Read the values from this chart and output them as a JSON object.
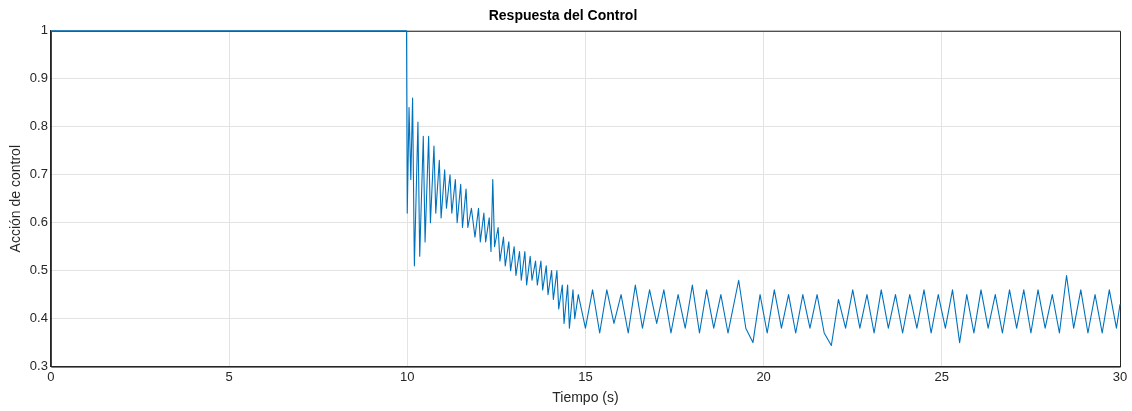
{
  "chart_data": {
    "type": "line",
    "title": "Respuesta del Control",
    "xlabel": "Tiempo (s)",
    "ylabel": "Acción de control",
    "xlim": [
      0,
      30
    ],
    "xticks": [
      0,
      5,
      10,
      15,
      20,
      25,
      30
    ],
    "ylim": [
      0.3,
      1
    ],
    "yticks": [
      0.3,
      0.4,
      0.5,
      0.6,
      0.7,
      0.8,
      0.9,
      1
    ],
    "grid": true,
    "legend": false,
    "marker": "none",
    "line_style": "solid",
    "series": [
      {
        "color": "#0072bd",
        "x": [
          0,
          9.98,
          10.0,
          10.05,
          10.1,
          10.15,
          10.2,
          10.3,
          10.35,
          10.45,
          10.5,
          10.6,
          10.65,
          10.75,
          10.8,
          10.9,
          10.95,
          11.05,
          11.1,
          11.2,
          11.25,
          11.35,
          11.4,
          11.5,
          11.55,
          11.65,
          11.7,
          11.8,
          11.9,
          12.0,
          12.05,
          12.15,
          12.2,
          12.3,
          12.35,
          12.4,
          12.45,
          12.55,
          12.6,
          12.7,
          12.75,
          12.85,
          12.9,
          13.0,
          13.05,
          13.15,
          13.2,
          13.3,
          13.35,
          13.45,
          13.5,
          13.6,
          13.65,
          13.75,
          13.8,
          13.9,
          13.95,
          14.05,
          14.1,
          14.2,
          14.25,
          14.35,
          14.4,
          14.5,
          14.55,
          14.65,
          14.7,
          14.8,
          15.0,
          15.2,
          15.4,
          15.6,
          15.8,
          16.0,
          16.2,
          16.4,
          16.6,
          16.8,
          17.0,
          17.2,
          17.4,
          17.6,
          17.8,
          18.0,
          18.2,
          18.4,
          18.6,
          18.8,
          19.0,
          19.3,
          19.5,
          19.7,
          19.9,
          20.1,
          20.3,
          20.5,
          20.7,
          20.9,
          21.1,
          21.3,
          21.5,
          21.7,
          21.9,
          22.1,
          22.3,
          22.5,
          22.7,
          22.9,
          23.1,
          23.3,
          23.5,
          23.7,
          23.9,
          24.1,
          24.3,
          24.5,
          24.7,
          24.9,
          25.1,
          25.3,
          25.5,
          25.7,
          25.9,
          26.1,
          26.3,
          26.5,
          26.7,
          26.9,
          27.1,
          27.3,
          27.5,
          27.7,
          27.9,
          28.1,
          28.3,
          28.5,
          28.7,
          28.9,
          29.1,
          29.3,
          29.5,
          29.7,
          29.9,
          30.0
        ],
        "values": [
          1,
          1,
          0.62,
          0.84,
          0.69,
          0.86,
          0.51,
          0.81,
          0.53,
          0.78,
          0.56,
          0.78,
          0.6,
          0.76,
          0.62,
          0.73,
          0.61,
          0.71,
          0.63,
          0.7,
          0.62,
          0.69,
          0.6,
          0.68,
          0.59,
          0.67,
          0.59,
          0.63,
          0.57,
          0.63,
          0.56,
          0.62,
          0.56,
          0.61,
          0.54,
          0.69,
          0.55,
          0.59,
          0.52,
          0.57,
          0.51,
          0.56,
          0.5,
          0.55,
          0.49,
          0.54,
          0.48,
          0.54,
          0.47,
          0.53,
          0.48,
          0.52,
          0.47,
          0.52,
          0.46,
          0.51,
          0.45,
          0.5,
          0.44,
          0.5,
          0.42,
          0.47,
          0.39,
          0.47,
          0.38,
          0.46,
          0.4,
          0.45,
          0.38,
          0.46,
          0.37,
          0.46,
          0.39,
          0.45,
          0.37,
          0.47,
          0.38,
          0.46,
          0.39,
          0.46,
          0.37,
          0.45,
          0.38,
          0.47,
          0.37,
          0.46,
          0.38,
          0.45,
          0.37,
          0.48,
          0.38,
          0.35,
          0.45,
          0.37,
          0.46,
          0.38,
          0.45,
          0.37,
          0.45,
          0.38,
          0.45,
          0.37,
          0.344,
          0.44,
          0.38,
          0.46,
          0.38,
          0.45,
          0.37,
          0.46,
          0.38,
          0.45,
          0.37,
          0.45,
          0.38,
          0.46,
          0.37,
          0.45,
          0.38,
          0.46,
          0.35,
          0.45,
          0.37,
          0.46,
          0.38,
          0.45,
          0.37,
          0.46,
          0.38,
          0.46,
          0.37,
          0.46,
          0.38,
          0.45,
          0.37,
          0.49,
          0.38,
          0.46,
          0.37,
          0.45,
          0.37,
          0.46,
          0.38,
          0.43
        ]
      }
    ]
  }
}
